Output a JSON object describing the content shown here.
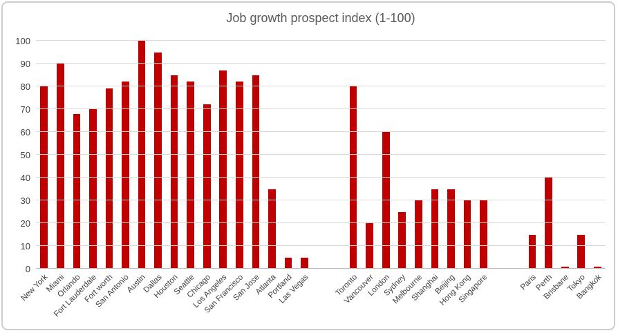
{
  "title": "Job growth prospect index (1-100)",
  "colors": {
    "bar": "#c00000",
    "title_text": "#595959",
    "axis_text": "#404040",
    "gridline": "#d9d9d9",
    "baseline": "#bdbdbd",
    "border": "#cdcdcd"
  },
  "chart_data": {
    "type": "bar",
    "title": "Job growth prospect index (1-100)",
    "xlabel": "",
    "ylabel": "",
    "ylim": [
      0,
      100
    ],
    "yticks": [
      0,
      10,
      20,
      30,
      40,
      50,
      60,
      70,
      80,
      90,
      100
    ],
    "grid": true,
    "legend": false,
    "bar_color": "#c00000",
    "groups": [
      {
        "categories": [
          "New York",
          "Miami",
          "Orlando",
          "Fort Lauderdale",
          "Fort worth",
          "San Antonio",
          "Austin",
          "Dallas",
          "Houston",
          "Seattle",
          "Chicago",
          "Los Angeles",
          "San Francisco",
          "San Jose",
          "Atlanta",
          "Portland",
          "Las Vegas"
        ],
        "values": [
          80,
          90,
          68,
          70,
          79,
          82,
          100,
          95,
          85,
          82,
          72,
          87,
          82,
          85,
          35,
          5,
          5
        ]
      },
      {
        "categories": [
          "Toronto",
          "Vancouver",
          "London",
          "Sydney",
          "Melbourne",
          "Shanghai",
          "Beijing",
          "Hong Kong",
          "Singapore"
        ],
        "values": [
          80,
          20,
          60,
          25,
          30,
          35,
          35,
          30,
          30
        ]
      },
      {
        "categories": [
          "Paris",
          "Perth",
          "Brisbane",
          "Tokyo",
          "Bangkok"
        ],
        "values": [
          15,
          40,
          1,
          15,
          1
        ]
      }
    ]
  }
}
